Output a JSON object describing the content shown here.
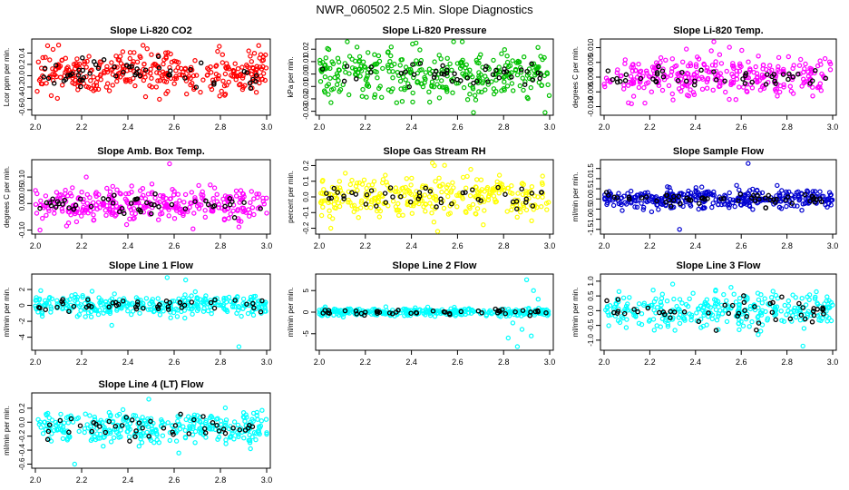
{
  "figure_title": "NWR_060502  2.5 Min. Slope Diagnostics",
  "chart_data": [
    {
      "type": "scatter",
      "title": "Slope Li-820 CO2",
      "xlabel": "",
      "ylabel": "Lcor ppm per min.",
      "xlim": [
        2.0,
        3.0
      ],
      "ylim": [
        -0.65,
        0.6
      ],
      "xticks": [
        "2.0",
        "2.2",
        "2.4",
        "2.6",
        "2.8",
        "3.0"
      ],
      "yticks": [
        -0.6,
        -0.4,
        -0.2,
        0.0,
        0.2,
        0.4
      ],
      "ytick_labels": [
        "-0.6",
        "-0.4",
        "-0.2",
        "0.0",
        "0.2",
        "0.4"
      ],
      "main_color": "#ff0000",
      "center": 0.05,
      "spread": 0.36,
      "n_points": 340,
      "n_black": 52,
      "black_spread": 0.28,
      "outliers": []
    },
    {
      "type": "scatter",
      "title": "Slope Li-820 Pressure",
      "xlabel": "",
      "ylabel": "kPa per min.",
      "xlim": [
        2.0,
        3.0
      ],
      "ylim": [
        -0.031,
        0.026
      ],
      "xticks": [
        "2.0",
        "2.2",
        "2.4",
        "2.6",
        "2.8",
        "3.0"
      ],
      "yticks": [
        -0.03,
        -0.02,
        -0.01,
        0.0,
        0.01,
        0.02
      ],
      "ytick_labels": [
        "-0.03",
        "-0.02",
        "-0.01",
        "0.00",
        "0.01",
        "0.02"
      ],
      "main_color": "#00c000",
      "center": 0.0,
      "spread": 0.02,
      "n_points": 330,
      "n_black": 45,
      "black_spread": 0.012,
      "outliers": [
        [
          2.42,
          0.025
        ],
        [
          2.36,
          -0.022
        ],
        [
          2.98,
          -0.031
        ]
      ]
    },
    {
      "type": "scatter",
      "title": "Slope Li-820 Temp.",
      "xlabel": "",
      "ylabel": "degrees C per min.",
      "xlim": [
        2.0,
        3.0
      ],
      "ylim": [
        -0.012,
        0.012
      ],
      "xticks": [
        "2.0",
        "2.2",
        "2.4",
        "2.6",
        "2.8",
        "3.0"
      ],
      "yticks": [
        -0.01,
        -0.005,
        0.0,
        0.005,
        0.01
      ],
      "ytick_labels": [
        "-0.010",
        "-0.005",
        "0.000",
        "0.005",
        "0.010"
      ],
      "main_color": "#ff00ff",
      "center": 0.0,
      "spread": 0.007,
      "n_points": 300,
      "n_black": 45,
      "black_spread": 0.004,
      "outliers": [
        [
          2.48,
          0.012
        ],
        [
          2.36,
          0.0095
        ],
        [
          2.12,
          -0.009
        ]
      ]
    },
    {
      "type": "scatter",
      "title": "Slope Amb. Box Temp.",
      "xlabel": "",
      "ylabel": "degrees C per min.",
      "xlim": [
        2.0,
        3.0
      ],
      "ylim": [
        -0.105,
        0.155
      ],
      "xticks": [
        "2.0",
        "2.2",
        "2.4",
        "2.6",
        "2.8",
        "3.0"
      ],
      "yticks": [
        -0.1,
        0.0,
        0.05,
        0.1
      ],
      "ytick_labels": [
        "-0.10",
        "0.00",
        "0.05",
        "0.10"
      ],
      "main_color": "#ff00ff",
      "center": 0.0,
      "spread": 0.06,
      "n_points": 330,
      "n_black": 50,
      "black_spread": 0.04,
      "outliers": [
        [
          2.58,
          0.15
        ],
        [
          2.02,
          -0.1
        ],
        [
          2.22,
          0.1
        ]
      ]
    },
    {
      "type": "scatter",
      "title": "Slope Gas Stream RH",
      "xlabel": "",
      "ylabel": "percent per min.",
      "xlim": [
        2.0,
        3.0
      ],
      "ylim": [
        -0.22,
        0.22
      ],
      "xticks": [
        "2.0",
        "2.2",
        "2.4",
        "2.6",
        "2.8",
        "3.0"
      ],
      "yticks": [
        -0.2,
        -0.1,
        0.0,
        0.1,
        0.2
      ],
      "ytick_labels": [
        "-0.2",
        "-0.1",
        "0.0",
        "0.1",
        "0.2"
      ],
      "main_color": "#ffff00",
      "center": 0.0,
      "spread": 0.14,
      "n_points": 320,
      "n_black": 45,
      "black_spread": 0.08,
      "outliers": [
        [
          2.05,
          -0.2
        ],
        [
          2.5,
          0.2
        ]
      ]
    },
    {
      "type": "scatter",
      "title": "Slope Sample Flow",
      "xlabel": "",
      "ylabel": "ml/min per min.",
      "xlim": [
        2.0,
        3.0
      ],
      "ylim": [
        -1.6,
        1.8
      ],
      "xticks": [
        "2.0",
        "2.2",
        "2.4",
        "2.6",
        "2.8",
        "3.0"
      ],
      "yticks": [
        -1.5,
        -1.0,
        -0.5,
        0.0,
        0.5,
        1.0,
        1.5
      ],
      "ytick_labels": [
        "-1.5",
        "-1.0",
        "-0.5",
        "0.0",
        "0.5",
        "1.0",
        "1.5"
      ],
      "main_color": "#0000d0",
      "center": 0.0,
      "spread": 0.45,
      "n_points": 360,
      "n_black": 55,
      "black_spread": 0.3,
      "outliers": [
        [
          2.63,
          1.75
        ],
        [
          2.33,
          -1.5
        ]
      ]
    },
    {
      "type": "scatter",
      "title": "Slope Line 1 Flow",
      "xlabel": "",
      "ylabel": "ml/min per min.",
      "xlim": [
        2.0,
        3.0
      ],
      "ylim": [
        -5.3,
        3.6
      ],
      "xticks": [
        "2.0",
        "2.2",
        "2.4",
        "2.6",
        "2.8",
        "3.0"
      ],
      "yticks": [
        -4,
        -2,
        0,
        2
      ],
      "ytick_labels": [
        "-4",
        "-2",
        "0",
        "2"
      ],
      "main_color": "#00ffff",
      "center": 0.0,
      "spread": 1.3,
      "n_points": 330,
      "n_black": 45,
      "black_spread": 0.9,
      "outliers": [
        [
          2.88,
          -5.2
        ],
        [
          2.65,
          3.2
        ],
        [
          2.33,
          -2.5
        ],
        [
          2.57,
          3.5
        ]
      ]
    },
    {
      "type": "scatter",
      "title": "Slope Line 2 Flow",
      "xlabel": "",
      "ylabel": "ml/min per min.",
      "xlim": [
        2.0,
        3.0
      ],
      "ylim": [
        -8.2,
        8.2
      ],
      "xticks": [
        "2.0",
        "2.2",
        "2.4",
        "2.6",
        "2.8",
        "3.0"
      ],
      "yticks": [
        -5,
        0,
        5
      ],
      "ytick_labels": [
        "-5",
        "0",
        "5"
      ],
      "main_color": "#00ffff",
      "center": 0.0,
      "spread": 0.9,
      "n_points": 300,
      "n_black": 45,
      "black_spread": 0.6,
      "outliers": [
        [
          2.9,
          7.5
        ],
        [
          2.86,
          -8.0
        ],
        [
          2.82,
          -6.0
        ],
        [
          2.93,
          5.0
        ],
        [
          2.88,
          -4.0
        ],
        [
          2.95,
          3.0
        ],
        [
          2.84,
          -2.5
        ],
        [
          2.92,
          -5.5
        ]
      ]
    },
    {
      "type": "scatter",
      "title": "Slope Line 3 Flow",
      "xlabel": "",
      "ylabel": "ml/min per min.",
      "xlim": [
        2.0,
        3.0
      ],
      "ylim": [
        -1.25,
        1.15
      ],
      "xticks": [
        "2.0",
        "2.2",
        "2.4",
        "2.6",
        "2.8",
        "3.0"
      ],
      "yticks": [
        -1.0,
        -0.5,
        0.0,
        0.5,
        1.0
      ],
      "ytick_labels": [
        "-1.0",
        "-0.5",
        "0.0",
        "0.5",
        "1.0"
      ],
      "main_color": "#00ffff",
      "center": 0.0,
      "spread": 0.6,
      "n_points": 300,
      "n_black": 50,
      "black_spread": 0.45,
      "outliers": [
        [
          2.87,
          -1.2
        ],
        [
          2.3,
          0.9
        ]
      ]
    },
    {
      "type": "scatter",
      "title": "Slope Line 4 (LT) Flow",
      "xlabel": "",
      "ylabel": "ml/min per min.",
      "xlim": [
        2.0,
        3.0
      ],
      "ylim": [
        -0.62,
        0.38
      ],
      "xticks": [
        "2.0",
        "2.2",
        "2.4",
        "2.6",
        "2.8",
        "3.0"
      ],
      "yticks": [
        -0.6,
        -0.4,
        -0.2,
        0.0,
        0.2
      ],
      "ytick_labels": [
        "-0.6",
        "-0.4",
        "-0.2",
        "0.0",
        "0.2"
      ],
      "main_color": "#00ffff",
      "center": -0.07,
      "spread": 0.22,
      "n_points": 330,
      "n_black": 45,
      "black_spread": 0.16,
      "outliers": [
        [
          2.17,
          -0.6
        ],
        [
          2.49,
          0.33
        ],
        [
          2.93,
          -0.38
        ]
      ]
    }
  ]
}
